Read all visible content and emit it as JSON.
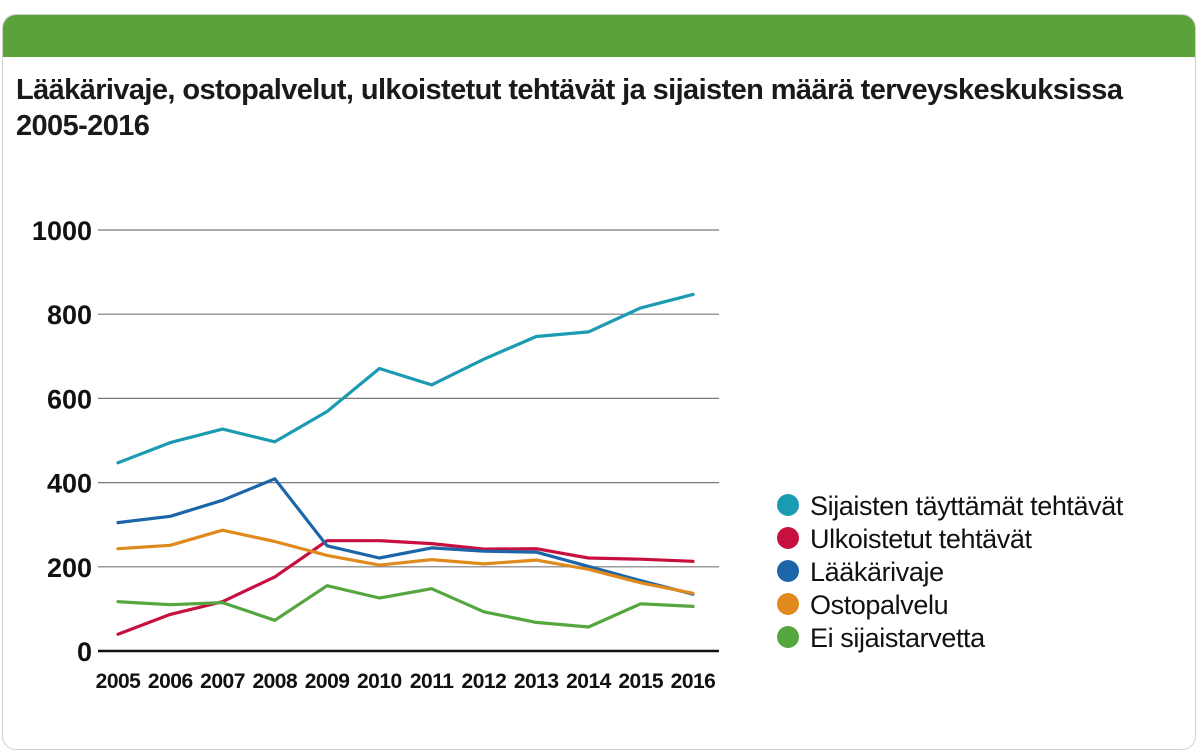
{
  "chart_data": {
    "type": "line",
    "title": "Lääkärivaje, ostopalvelut, ulkoistetut tehtävät ja sijaisten määrä terveyskeskuksissa 2005-2016",
    "xlabel": "",
    "ylabel": "",
    "ylim": [
      0,
      1000
    ],
    "yticks": [
      0,
      200,
      400,
      600,
      800,
      1000
    ],
    "categories": [
      "2005",
      "2006",
      "2007",
      "2008",
      "2009",
      "2010",
      "2011",
      "2012",
      "2013",
      "2014",
      "2015",
      "2016"
    ],
    "grid": true,
    "legend_position": "right",
    "series": [
      {
        "name": "Sijaisten täyttämät tehtävät",
        "color": "#1a9bb1",
        "values": [
          447,
          495,
          527,
          497,
          569,
          671,
          632,
          693,
          747,
          758,
          815,
          847
        ]
      },
      {
        "name": "Ulkoistetut tehtävät",
        "color": "#c8103e",
        "values": [
          40,
          87,
          117,
          176,
          262,
          262,
          255,
          242,
          243,
          221,
          218,
          213
        ]
      },
      {
        "name": "Lääkärivaje",
        "color": "#1c65a8",
        "values": [
          305,
          320,
          358,
          409,
          250,
          221,
          245,
          237,
          235,
          201,
          167,
          135
        ]
      },
      {
        "name": "Ostopalvelu",
        "color": "#e08a1e",
        "values": [
          243,
          251,
          287,
          260,
          227,
          204,
          217,
          207,
          216,
          194,
          162,
          137
        ]
      },
      {
        "name": "Ei sijaistarvetta",
        "color": "#56a640",
        "values": [
          117,
          110,
          115,
          73,
          155,
          126,
          148,
          93,
          68,
          57,
          112,
          106
        ]
      }
    ]
  }
}
